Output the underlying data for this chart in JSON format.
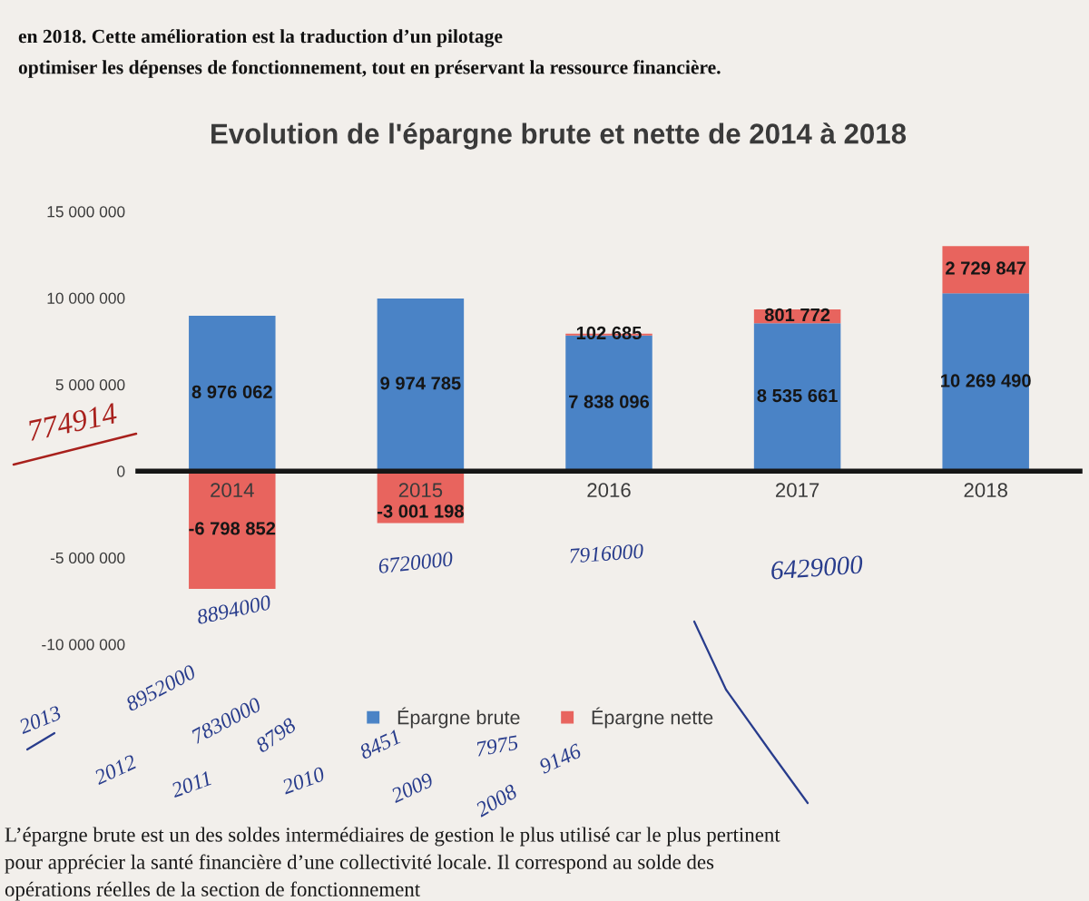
{
  "chart_data": {
    "type": "bar",
    "title": "Evolution de l'épargne brute et nette de 2014 à 2018",
    "categories": [
      "2014",
      "2015",
      "2016",
      "2017",
      "2018"
    ],
    "series": [
      {
        "name": "Épargne brute",
        "color": "#4a83c6",
        "values": [
          8976062,
          9974785,
          7838096,
          8535661,
          10269490
        ],
        "value_labels": [
          "8 976 062",
          "9 974 785",
          "7 838 096",
          "8 535 661",
          "10 269 490"
        ]
      },
      {
        "name": "Épargne nette",
        "color": "#e8645e",
        "values": [
          -6798852,
          -3001198,
          102685,
          801772,
          2729847
        ],
        "value_labels": [
          "-6 798 852",
          "-3 001 198",
          "102 685",
          "801 772",
          "2 729 847"
        ]
      }
    ],
    "stacked": true,
    "ylim": [
      -10000000,
      15000000
    ],
    "yticks": [
      {
        "value": -10000000,
        "label": "-10 000 000"
      },
      {
        "value": -5000000,
        "label": "-5 000 000"
      },
      0,
      {
        "value": 5000000,
        "label": "5 000 000"
      },
      {
        "value": 10000000,
        "label": "10 000 000"
      },
      {
        "value": 15000000,
        "label": "15 000 000"
      }
    ],
    "legend": "bottom",
    "annotations": [
      "en 2018. Cette amélioration est la traduction d’un pilotage",
      "optimiser les dépenses de fonctionnement, tout en préservant la ressource financière.",
      "774914",
      "8894000",
      "6720000",
      "7916000",
      "6429000",
      "2013",
      "8952000",
      "2012",
      "7830000",
      "2011",
      "8798",
      "2010",
      "8451",
      "2009",
      "7975",
      "2008",
      "9146",
      "L’épargne brute est un des soldes intermédiaires de gestion le plus utilisé car le plus pertinent",
      "pour apprécier la santé financière d’une collectivité locale. Il correspond au solde des",
      "opérations réelles de la section de fonctionnement"
    ]
  }
}
